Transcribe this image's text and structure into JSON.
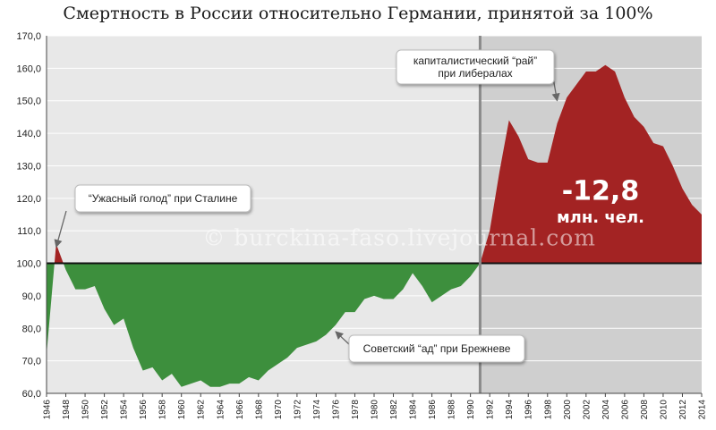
{
  "title": "Смертность в России относительно Германии, принятой за 100%",
  "watermark": "© burckina-faso.livejournal.com",
  "big_number": "-12,8",
  "big_unit": "млн. чел.",
  "annotations": [
    {
      "lines": [
        "“Ужасный голод” при Сталине"
      ],
      "point_year": 1947,
      "point_value": 105
    },
    {
      "lines": [
        "Советский “ад” при Брежневе"
      ],
      "point_year": 1976,
      "point_value": 79
    },
    {
      "lines": [
        "капиталистический “рай”",
        "при либералах"
      ],
      "point_year": 1999,
      "point_value": 150
    }
  ],
  "colors": {
    "below_fill": "#3d8f3d",
    "above_fill": "#a32323",
    "left_bg": "#e8e8e8",
    "right_bg": "#cfcfcf",
    "baseline": "#111111"
  },
  "chart_data": {
    "type": "area",
    "title": "Смертность в России относительно Германии, принятой за 100%",
    "baseline": 100,
    "ylim": [
      60,
      170
    ],
    "xlim": [
      1946,
      2014
    ],
    "y_ticks": [
      "60,0",
      "70,0",
      "80,0",
      "90,0",
      "100,0",
      "110,0",
      "120,0",
      "130,0",
      "140,0",
      "150,0",
      "160,0",
      "170,0"
    ],
    "x_ticks": [
      1946,
      1948,
      1950,
      1952,
      1954,
      1956,
      1958,
      1960,
      1962,
      1964,
      1966,
      1968,
      1970,
      1972,
      1974,
      1976,
      1978,
      1980,
      1982,
      1984,
      1986,
      1988,
      1990,
      1992,
      1994,
      1996,
      1998,
      2000,
      2002,
      2004,
      2006,
      2008,
      2010,
      2012,
      2014
    ],
    "period_divider_year": 1991,
    "x": [
      1946,
      1947,
      1948,
      1949,
      1950,
      1951,
      1952,
      1953,
      1954,
      1955,
      1956,
      1957,
      1958,
      1959,
      1960,
      1961,
      1962,
      1963,
      1964,
      1965,
      1966,
      1967,
      1968,
      1969,
      1970,
      1971,
      1972,
      1973,
      1974,
      1975,
      1976,
      1977,
      1978,
      1979,
      1980,
      1981,
      1982,
      1983,
      1984,
      1985,
      1986,
      1987,
      1988,
      1989,
      1990,
      1991,
      1992,
      1993,
      1994,
      1995,
      1996,
      1997,
      1998,
      1999,
      2000,
      2001,
      2002,
      2003,
      2004,
      2005,
      2006,
      2007,
      2008,
      2009,
      2010,
      2011,
      2012,
      2013,
      2014
    ],
    "values": [
      72,
      106,
      98,
      92,
      92,
      93,
      86,
      81,
      83,
      74,
      67,
      68,
      64,
      66,
      62,
      63,
      64,
      62,
      62,
      63,
      63,
      65,
      64,
      67,
      69,
      71,
      74,
      75,
      76,
      78,
      81,
      85,
      85,
      89,
      90,
      89,
      89,
      92,
      97,
      93,
      88,
      90,
      92,
      93,
      96,
      100,
      110,
      128,
      144,
      139,
      132,
      131,
      131,
      143,
      151,
      155,
      159,
      159,
      161,
      159,
      151,
      145,
      142,
      137,
      136,
      130,
      123,
      118,
      115
    ]
  }
}
